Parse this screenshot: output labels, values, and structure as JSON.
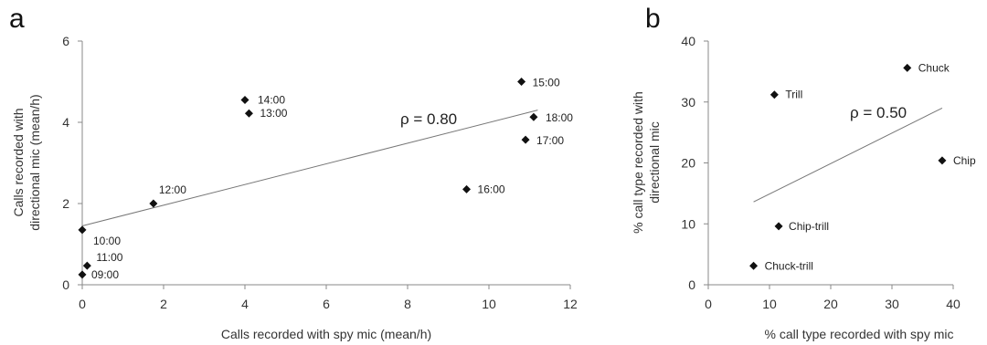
{
  "chart_data": [
    {
      "panel": "a",
      "type": "scatter",
      "xlabel": "Calls recorded with spy mic (mean/h)",
      "ylabel": [
        "Calls recorded with",
        "directional mic (mean/h)"
      ],
      "xlim": [
        0,
        12
      ],
      "ylim": [
        0,
        6
      ],
      "xticks": [
        0,
        2,
        4,
        6,
        8,
        10,
        12
      ],
      "yticks": [
        0,
        2,
        4,
        6
      ],
      "points": [
        {
          "label": "09:00",
          "x": 0.0,
          "y": 0.25
        },
        {
          "label": "10:00",
          "x": 0.0,
          "y": 1.35
        },
        {
          "label": "11:00",
          "x": 0.12,
          "y": 0.47
        },
        {
          "label": "12:00",
          "x": 1.75,
          "y": 2.0
        },
        {
          "label": "13:00",
          "x": 4.1,
          "y": 4.22
        },
        {
          "label": "14:00",
          "x": 4.0,
          "y": 4.55
        },
        {
          "label": "15:00",
          "x": 10.8,
          "y": 5.0
        },
        {
          "label": "16:00",
          "x": 9.45,
          "y": 2.35
        },
        {
          "label": "17:00",
          "x": 10.9,
          "y": 3.57
        },
        {
          "label": "18:00",
          "x": 11.1,
          "y": 4.13
        }
      ],
      "trendline": {
        "x": [
          0,
          11.2
        ],
        "y": [
          1.45,
          4.3
        ]
      },
      "annotation": "ρ = 0.80",
      "grid": false
    },
    {
      "panel": "b",
      "type": "scatter",
      "xlabel": "% call type recorded with spy mic",
      "ylabel": [
        "% call type recorded with",
        "directional mic"
      ],
      "xlim": [
        0,
        40
      ],
      "ylim": [
        0,
        40
      ],
      "xticks": [
        0,
        10,
        20,
        30,
        40
      ],
      "yticks": [
        0,
        10,
        20,
        30,
        40
      ],
      "points": [
        {
          "label": "Chuck",
          "x": 32.5,
          "y": 35.6
        },
        {
          "label": "Trill",
          "x": 10.8,
          "y": 31.2
        },
        {
          "label": "Chip",
          "x": 38.2,
          "y": 20.4
        },
        {
          "label": "Chip-trill",
          "x": 11.5,
          "y": 9.6
        },
        {
          "label": "Chuck-trill",
          "x": 7.4,
          "y": 3.1
        }
      ],
      "trendline": {
        "x": [
          7.4,
          38.2
        ],
        "y": [
          13.6,
          29.0
        ]
      },
      "annotation": "ρ = 0.50",
      "grid": false
    }
  ]
}
